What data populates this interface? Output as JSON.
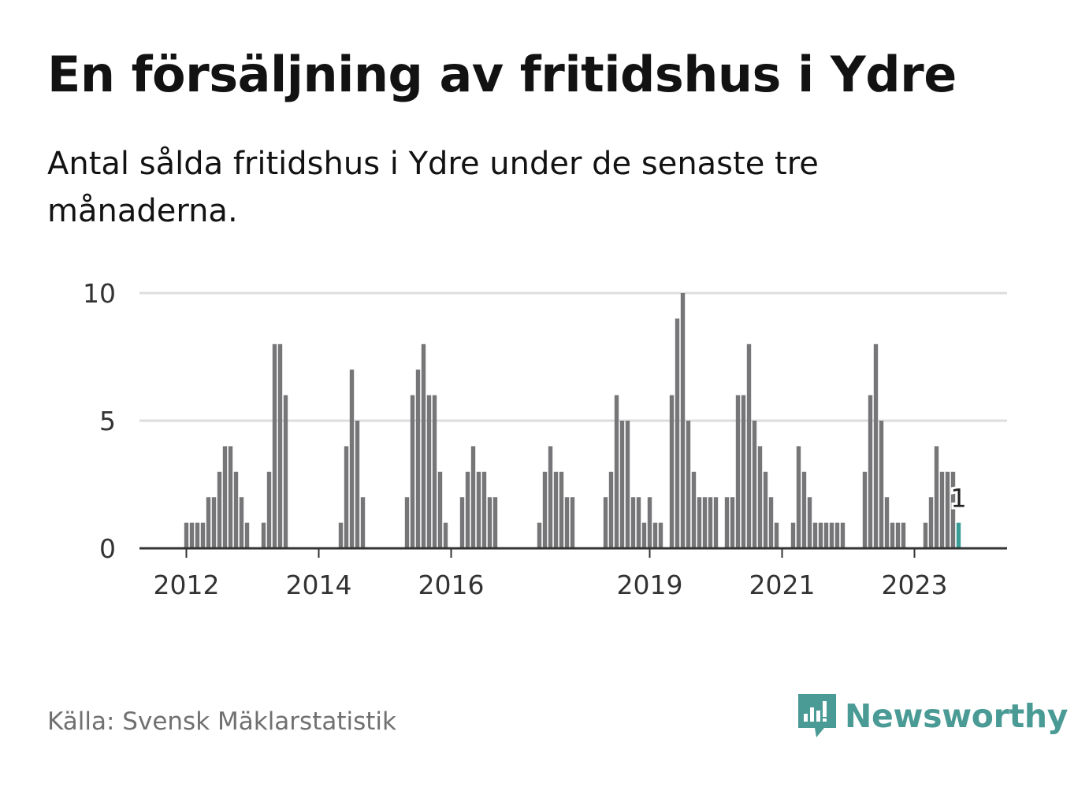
{
  "title": "En försäljning av fritidshus i Ydre",
  "subtitle": "Antal sålda fritidshus i Ydre under de senaste tre månaderna.",
  "source": "Källa: Svensk Mäklarstatistik",
  "brand": {
    "name": "Newsworthy",
    "icon": "newsworthy-chart-bubble-icon",
    "color": "#4a9a95"
  },
  "colors": {
    "bar": "#767578",
    "highlight": "#3a9e96",
    "grid": "#dddddd",
    "axis": "#333333"
  },
  "chart_data": {
    "type": "bar",
    "title": "En försäljning av fritidshus i Ydre",
    "xlabel": "",
    "ylabel": "",
    "ylim": [
      0,
      10
    ],
    "yticks": [
      "0",
      "5",
      "10"
    ],
    "xticks": [
      {
        "label": "2012",
        "x": "2012-01"
      },
      {
        "label": "2014",
        "x": "2014-01"
      },
      {
        "label": "2016",
        "x": "2016-01"
      },
      {
        "label": "2019",
        "x": "2019-01"
      },
      {
        "label": "2021",
        "x": "2021-01"
      },
      {
        "label": "2023",
        "x": "2023-01"
      }
    ],
    "grid": true,
    "highlight": {
      "x": "2023-09",
      "value": 1,
      "label": "1"
    },
    "series": [
      {
        "data": [
          {
            "x": "2012-01",
            "value": 1
          },
          {
            "x": "2012-02",
            "value": 1
          },
          {
            "x": "2012-03",
            "value": 1
          },
          {
            "x": "2012-04",
            "value": 1
          },
          {
            "x": "2012-05",
            "value": 2
          },
          {
            "x": "2012-06",
            "value": 2
          },
          {
            "x": "2012-07",
            "value": 3
          },
          {
            "x": "2012-08",
            "value": 4
          },
          {
            "x": "2012-09",
            "value": 4
          },
          {
            "x": "2012-10",
            "value": 3
          },
          {
            "x": "2012-11",
            "value": 2
          },
          {
            "x": "2012-12",
            "value": 1
          },
          {
            "x": "2013-03",
            "value": 1
          },
          {
            "x": "2013-04",
            "value": 3
          },
          {
            "x": "2013-05",
            "value": 8
          },
          {
            "x": "2013-06",
            "value": 8
          },
          {
            "x": "2013-07",
            "value": 6
          },
          {
            "x": "2014-05",
            "value": 1
          },
          {
            "x": "2014-06",
            "value": 4
          },
          {
            "x": "2014-07",
            "value": 7
          },
          {
            "x": "2014-08",
            "value": 5
          },
          {
            "x": "2014-09",
            "value": 2
          },
          {
            "x": "2015-05",
            "value": 2
          },
          {
            "x": "2015-06",
            "value": 6
          },
          {
            "x": "2015-07",
            "value": 7
          },
          {
            "x": "2015-08",
            "value": 8
          },
          {
            "x": "2015-09",
            "value": 6
          },
          {
            "x": "2015-10",
            "value": 6
          },
          {
            "x": "2015-11",
            "value": 3
          },
          {
            "x": "2015-12",
            "value": 1
          },
          {
            "x": "2016-03",
            "value": 2
          },
          {
            "x": "2016-04",
            "value": 3
          },
          {
            "x": "2016-05",
            "value": 4
          },
          {
            "x": "2016-06",
            "value": 3
          },
          {
            "x": "2016-07",
            "value": 3
          },
          {
            "x": "2016-08",
            "value": 2
          },
          {
            "x": "2016-09",
            "value": 2
          },
          {
            "x": "2017-05",
            "value": 1
          },
          {
            "x": "2017-06",
            "value": 3
          },
          {
            "x": "2017-07",
            "value": 4
          },
          {
            "x": "2017-08",
            "value": 3
          },
          {
            "x": "2017-09",
            "value": 3
          },
          {
            "x": "2017-10",
            "value": 2
          },
          {
            "x": "2017-11",
            "value": 2
          },
          {
            "x": "2018-05",
            "value": 2
          },
          {
            "x": "2018-06",
            "value": 3
          },
          {
            "x": "2018-07",
            "value": 6
          },
          {
            "x": "2018-08",
            "value": 5
          },
          {
            "x": "2018-09",
            "value": 5
          },
          {
            "x": "2018-10",
            "value": 2
          },
          {
            "x": "2018-11",
            "value": 2
          },
          {
            "x": "2018-12",
            "value": 1
          },
          {
            "x": "2019-01",
            "value": 2
          },
          {
            "x": "2019-02",
            "value": 1
          },
          {
            "x": "2019-03",
            "value": 1
          },
          {
            "x": "2019-05",
            "value": 6
          },
          {
            "x": "2019-06",
            "value": 9
          },
          {
            "x": "2019-07",
            "value": 10
          },
          {
            "x": "2019-08",
            "value": 5
          },
          {
            "x": "2019-09",
            "value": 3
          },
          {
            "x": "2019-10",
            "value": 2
          },
          {
            "x": "2019-11",
            "value": 2
          },
          {
            "x": "2019-12",
            "value": 2
          },
          {
            "x": "2020-01",
            "value": 2
          },
          {
            "x": "2020-03",
            "value": 2
          },
          {
            "x": "2020-04",
            "value": 2
          },
          {
            "x": "2020-05",
            "value": 6
          },
          {
            "x": "2020-06",
            "value": 6
          },
          {
            "x": "2020-07",
            "value": 8
          },
          {
            "x": "2020-08",
            "value": 5
          },
          {
            "x": "2020-09",
            "value": 4
          },
          {
            "x": "2020-10",
            "value": 3
          },
          {
            "x": "2020-11",
            "value": 2
          },
          {
            "x": "2020-12",
            "value": 1
          },
          {
            "x": "2021-03",
            "value": 1
          },
          {
            "x": "2021-04",
            "value": 4
          },
          {
            "x": "2021-05",
            "value": 3
          },
          {
            "x": "2021-06",
            "value": 2
          },
          {
            "x": "2021-07",
            "value": 1
          },
          {
            "x": "2021-08",
            "value": 1
          },
          {
            "x": "2021-09",
            "value": 1
          },
          {
            "x": "2021-10",
            "value": 1
          },
          {
            "x": "2021-11",
            "value": 1
          },
          {
            "x": "2021-12",
            "value": 1
          },
          {
            "x": "2022-04",
            "value": 3
          },
          {
            "x": "2022-05",
            "value": 6
          },
          {
            "x": "2022-06",
            "value": 8
          },
          {
            "x": "2022-07",
            "value": 5
          },
          {
            "x": "2022-08",
            "value": 2
          },
          {
            "x": "2022-09",
            "value": 1
          },
          {
            "x": "2022-10",
            "value": 1
          },
          {
            "x": "2022-11",
            "value": 1
          },
          {
            "x": "2023-03",
            "value": 1
          },
          {
            "x": "2023-04",
            "value": 2
          },
          {
            "x": "2023-05",
            "value": 4
          },
          {
            "x": "2023-06",
            "value": 3
          },
          {
            "x": "2023-07",
            "value": 3
          },
          {
            "x": "2023-08",
            "value": 3
          },
          {
            "x": "2023-09",
            "value": 1
          }
        ]
      }
    ]
  }
}
